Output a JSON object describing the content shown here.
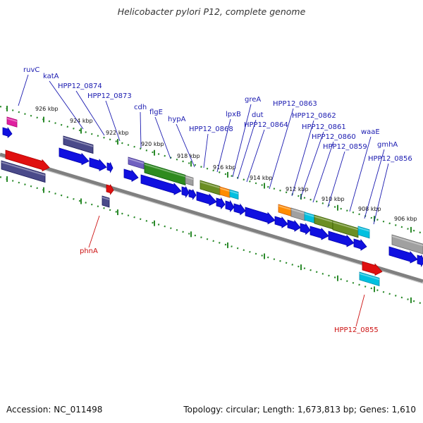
{
  "title": "Helicobacter pylori P12, complete genome",
  "footer": {
    "accession": "Accession: NC_011498",
    "summary": "Topology: circular; Length: 1,673,813 bp; Genes: 1,610"
  },
  "colors": {
    "blue": "#1010e0",
    "red": "#e01010",
    "green": "#2e8b1e",
    "olive": "#6b8e23",
    "orange": "#ff8c00",
    "cyan": "#00c0e0",
    "slate": "#4a4a8a",
    "purple": "#7060c0",
    "gray": "#a0a0a0",
    "magenta": "#e020a0",
    "label_blue": "#1a1ab0",
    "label_red": "#cc1111"
  },
  "scale": {
    "unit": "kbp",
    "labels": [
      "926 kbp",
      "924 kbp",
      "922 kbp",
      "920 kbp",
      "918 kbp",
      "916 kbp",
      "914 kbp",
      "912 kbp",
      "910 kbp",
      "908 kbp",
      "906 kbp"
    ]
  },
  "gene_labels": [
    {
      "text": "ruvC",
      "color": "label_blue"
    },
    {
      "text": "katA",
      "color": "label_blue"
    },
    {
      "text": "HPP12_0874",
      "color": "label_blue"
    },
    {
      "text": "HPP12_0873",
      "color": "label_blue"
    },
    {
      "text": "cdh",
      "color": "label_blue"
    },
    {
      "text": "flgE",
      "color": "label_blue"
    },
    {
      "text": "hypA",
      "color": "label_blue"
    },
    {
      "text": "HPP12_0868",
      "color": "label_blue"
    },
    {
      "text": "lpxB",
      "color": "label_blue"
    },
    {
      "text": "greA",
      "color": "label_blue"
    },
    {
      "text": "dut",
      "color": "label_blue"
    },
    {
      "text": "HPP12_0864",
      "color": "label_blue"
    },
    {
      "text": "HPP12_0863",
      "color": "label_blue"
    },
    {
      "text": "HPP12_0862",
      "color": "label_blue"
    },
    {
      "text": "HPP12_0861",
      "color": "label_blue"
    },
    {
      "text": "HPP12_0860",
      "color": "label_blue"
    },
    {
      "text": "HPP12_0859",
      "color": "label_blue"
    },
    {
      "text": "waaE",
      "color": "label_blue"
    },
    {
      "text": "gmhA",
      "color": "label_blue"
    },
    {
      "text": "HPP12_0856",
      "color": "label_blue"
    },
    {
      "text": "phnA",
      "color": "label_red"
    },
    {
      "text": "HPP12_0855",
      "color": "label_red"
    }
  ]
}
